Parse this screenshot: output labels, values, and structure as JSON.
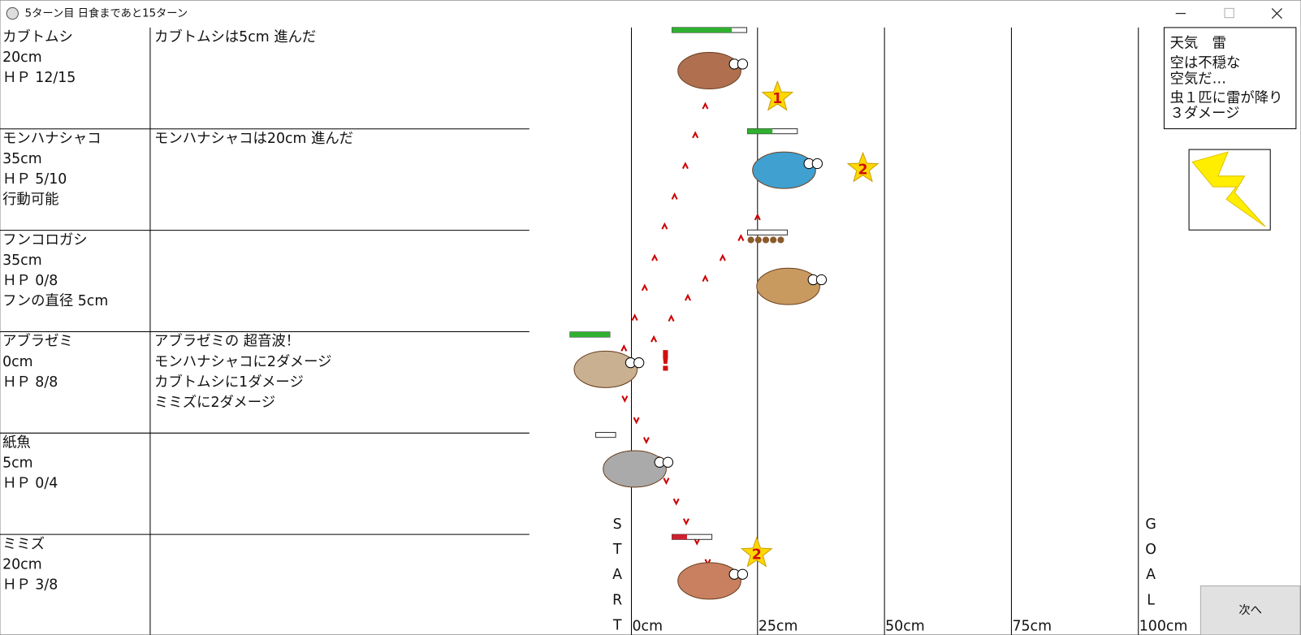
{
  "window": {
    "title": "5ターン目 日食まであと15ターン"
  },
  "bugs": [
    {
      "name": "カブトムシ",
      "distance": "20cm",
      "hp": "ＨＰ 12/15",
      "log": [
        "カブトムシは5cm 進んだ"
      ]
    },
    {
      "name": "モンハナシャコ",
      "distance": "35cm",
      "hp": "ＨＰ 5/10",
      "status": "行動可能",
      "log": [
        "モンハナシャコは20cm 進んだ"
      ]
    },
    {
      "name": "フンコロガシ",
      "distance": "35cm",
      "hp": "ＨＰ 0/8",
      "status": "フンの直径 5cm",
      "log": []
    },
    {
      "name": "アブラゼミ",
      "distance": "0cm",
      "hp": "ＨＰ 8/8",
      "log": [
        "アブラゼミの 超音波！",
        "モンハナシャコに2ダメージ",
        "カブトムシに1ダメージ",
        "ミミズに2ダメージ"
      ]
    },
    {
      "name": "紙魚",
      "distance": "5cm",
      "hp": "ＨＰ 0/4",
      "log": []
    },
    {
      "name": "ミミズ",
      "distance": "20cm",
      "hp": "ＨＰ 3/8",
      "log": []
    }
  ],
  "track": {
    "labels": [
      "0cm",
      "25cm",
      "50cm",
      "75cm",
      "100cm"
    ],
    "start": [
      "S",
      "T",
      "A",
      "R",
      "T"
    ],
    "goal": [
      "G",
      "O",
      "A",
      "L"
    ]
  },
  "markers": {
    "alert": "!",
    "stars": [
      "1",
      "2",
      "2"
    ]
  },
  "weather": {
    "title": "天気　雷",
    "description": [
      "空は不穏な",
      "空気だ…"
    ],
    "effect": [
      "虫１匹に雷が降り",
      "３ダメージ"
    ]
  },
  "button": "次へ"
}
